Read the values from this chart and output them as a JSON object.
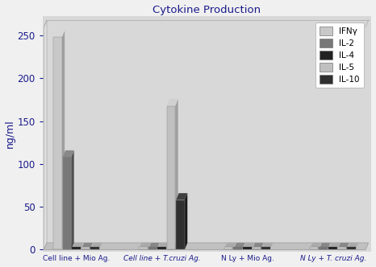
{
  "title": "Cytokine Production",
  "ylabel": "ng/ml",
  "groups": [
    "Cell line + Mio Ag.",
    "Cell line + T.cruzi Ag.",
    "N Ly + Mio Ag.",
    "N Ly + T. cruzi Ag."
  ],
  "cytokines": [
    "IFNγ",
    "IL-2",
    "IL-4",
    "IL-5",
    "IL-10"
  ],
  "colors": [
    "#c8c8c8",
    "#787878",
    "#222222",
    "#c0c0c0",
    "#303030"
  ],
  "side_colors": [
    "#a0a0a0",
    "#505050",
    "#111111",
    "#a0a0a0",
    "#181818"
  ],
  "top_colors": [
    "#d8d8d8",
    "#888888",
    "#333333",
    "#d0d0d0",
    "#404040"
  ],
  "values": [
    [
      248,
      108,
      3,
      3,
      3
    ],
    [
      3,
      3,
      3,
      168,
      58
    ],
    [
      3,
      3,
      3,
      3,
      3
    ],
    [
      3,
      3,
      3,
      3,
      3
    ]
  ],
  "ylim": [
    0,
    260
  ],
  "yticks": [
    0,
    50,
    100,
    150,
    200,
    250
  ],
  "plot_bg": "#d8d8d8",
  "wall_bg": "#e0e0e0",
  "floor_bg": "#c0c0c0",
  "title_color": "#1a1a8c",
  "label_color": "#1a1a8c",
  "tick_color": "#1a1a8c"
}
